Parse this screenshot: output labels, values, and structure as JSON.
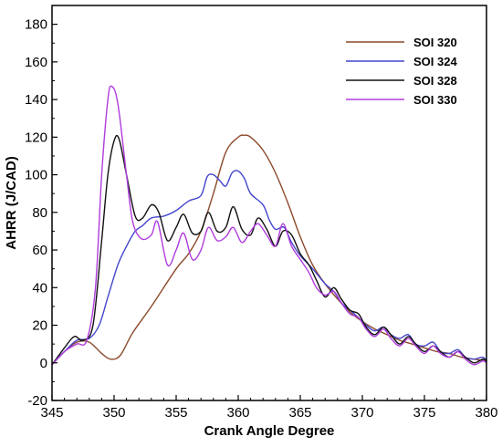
{
  "chart_data": {
    "type": "line",
    "title": "",
    "xlabel": "Crank Angle Degree",
    "ylabel": "AHRR (J/CAD)",
    "xlim": [
      345,
      380
    ],
    "ylim": [
      -20,
      190
    ],
    "xticks": [
      345,
      350,
      355,
      360,
      365,
      370,
      375,
      380
    ],
    "yticks": [
      -20,
      0,
      20,
      40,
      60,
      80,
      100,
      120,
      140,
      160,
      180
    ],
    "grid": false,
    "legend_position": "top-right",
    "series": [
      {
        "name": "SOI 320",
        "color": "#8b4a2b",
        "points": [
          [
            345,
            -1
          ],
          [
            346,
            6
          ],
          [
            347,
            11
          ],
          [
            348,
            11
          ],
          [
            349,
            5
          ],
          [
            349.7,
            2
          ],
          [
            350.5,
            4
          ],
          [
            351.5,
            16
          ],
          [
            353,
            30
          ],
          [
            355,
            50
          ],
          [
            356,
            58
          ],
          [
            357,
            70
          ],
          [
            358,
            90
          ],
          [
            359,
            112
          ],
          [
            360,
            120
          ],
          [
            360.5,
            121
          ],
          [
            361,
            120
          ],
          [
            362,
            113
          ],
          [
            363,
            101
          ],
          [
            364,
            85
          ],
          [
            365,
            67
          ],
          [
            366,
            52
          ],
          [
            367,
            42
          ],
          [
            368,
            34
          ],
          [
            369,
            27
          ],
          [
            370,
            22
          ],
          [
            371,
            18
          ],
          [
            372,
            15
          ],
          [
            373,
            12
          ],
          [
            374,
            10
          ],
          [
            375,
            8
          ],
          [
            376,
            6
          ],
          [
            377,
            5
          ],
          [
            378,
            3
          ],
          [
            379,
            2
          ],
          [
            380,
            1
          ]
        ]
      },
      {
        "name": "SOI 324",
        "color": "#4444cc",
        "points": [
          [
            345,
            -1
          ],
          [
            346,
            6
          ],
          [
            347,
            12
          ],
          [
            348,
            13
          ],
          [
            348.8,
            20
          ],
          [
            349.5,
            35
          ],
          [
            350.3,
            52
          ],
          [
            351,
            62
          ],
          [
            351.7,
            70
          ],
          [
            352.3,
            73
          ],
          [
            353,
            77
          ],
          [
            354,
            78
          ],
          [
            355,
            81
          ],
          [
            356,
            86
          ],
          [
            357,
            89
          ],
          [
            357.5,
            99
          ],
          [
            358,
            100
          ],
          [
            358.5,
            97
          ],
          [
            359,
            94
          ],
          [
            359.5,
            101
          ],
          [
            360,
            102
          ],
          [
            360.5,
            98
          ],
          [
            361,
            90
          ],
          [
            362,
            84
          ],
          [
            362.5,
            76
          ],
          [
            363,
            71
          ],
          [
            363.7,
            72
          ],
          [
            364.3,
            64
          ],
          [
            365,
            57
          ],
          [
            366,
            50
          ],
          [
            367,
            42
          ],
          [
            367.7,
            38
          ],
          [
            368.3,
            32
          ],
          [
            369,
            28
          ],
          [
            369.7,
            24
          ],
          [
            370.3,
            20
          ],
          [
            371,
            17
          ],
          [
            371.7,
            19
          ],
          [
            372.3,
            15
          ],
          [
            373,
            13
          ],
          [
            373.7,
            15
          ],
          [
            374.3,
            10
          ],
          [
            375,
            9
          ],
          [
            375.7,
            11
          ],
          [
            376.3,
            6
          ],
          [
            377,
            5
          ],
          [
            377.7,
            7
          ],
          [
            378.3,
            3
          ],
          [
            379,
            2
          ],
          [
            379.7,
            3
          ],
          [
            380,
            1
          ]
        ]
      },
      {
        "name": "SOI 328",
        "color": "#111111",
        "points": [
          [
            345,
            -1
          ],
          [
            346,
            8
          ],
          [
            346.8,
            14
          ],
          [
            347.5,
            12
          ],
          [
            348.3,
            20
          ],
          [
            349,
            65
          ],
          [
            349.5,
            100
          ],
          [
            350,
            118
          ],
          [
            350.4,
            119
          ],
          [
            351,
            100
          ],
          [
            351.7,
            78
          ],
          [
            352.3,
            77
          ],
          [
            353,
            84
          ],
          [
            353.6,
            80
          ],
          [
            354.3,
            65
          ],
          [
            355,
            72
          ],
          [
            355.6,
            79
          ],
          [
            356.3,
            69
          ],
          [
            357,
            70
          ],
          [
            357.6,
            80
          ],
          [
            358.3,
            70
          ],
          [
            359,
            72
          ],
          [
            359.6,
            83
          ],
          [
            360.3,
            71
          ],
          [
            361,
            68
          ],
          [
            361.6,
            77
          ],
          [
            362.3,
            71
          ],
          [
            363,
            62
          ],
          [
            363.6,
            70
          ],
          [
            364.3,
            68
          ],
          [
            365,
            58
          ],
          [
            365.7,
            52
          ],
          [
            366.3,
            44
          ],
          [
            367,
            35
          ],
          [
            367.7,
            40
          ],
          [
            368.3,
            34
          ],
          [
            369,
            28
          ],
          [
            369.7,
            26
          ],
          [
            370.3,
            19
          ],
          [
            371,
            15
          ],
          [
            371.7,
            19
          ],
          [
            372.3,
            15
          ],
          [
            373,
            10
          ],
          [
            373.7,
            14
          ],
          [
            374.3,
            10
          ],
          [
            375,
            6
          ],
          [
            375.7,
            9
          ],
          [
            376.3,
            6
          ],
          [
            377,
            3
          ],
          [
            377.7,
            6
          ],
          [
            378.3,
            3
          ],
          [
            379,
            0
          ],
          [
            379.7,
            2
          ],
          [
            380,
            1
          ]
        ]
      },
      {
        "name": "SOI 330",
        "color": "#b03cdd",
        "points": [
          [
            345,
            -1
          ],
          [
            346,
            6
          ],
          [
            347,
            10
          ],
          [
            347.8,
            12
          ],
          [
            348.5,
            40
          ],
          [
            349,
            100
          ],
          [
            349.5,
            140
          ],
          [
            349.8,
            147
          ],
          [
            350.3,
            138
          ],
          [
            351,
            100
          ],
          [
            351.5,
            75
          ],
          [
            352.2,
            66
          ],
          [
            353,
            68
          ],
          [
            353.5,
            75
          ],
          [
            354.3,
            52
          ],
          [
            355,
            60
          ],
          [
            355.6,
            69
          ],
          [
            356.3,
            55
          ],
          [
            357,
            60
          ],
          [
            357.6,
            72
          ],
          [
            358.3,
            65
          ],
          [
            359,
            67
          ],
          [
            359.6,
            72
          ],
          [
            360.3,
            64
          ],
          [
            361,
            70
          ],
          [
            361.6,
            74
          ],
          [
            362.3,
            68
          ],
          [
            363,
            62
          ],
          [
            363.6,
            74
          ],
          [
            364.3,
            62
          ],
          [
            365,
            55
          ],
          [
            365.7,
            48
          ],
          [
            366.3,
            40
          ],
          [
            367,
            36
          ],
          [
            367.7,
            38
          ],
          [
            368.3,
            32
          ],
          [
            369,
            26
          ],
          [
            369.7,
            24
          ],
          [
            370.3,
            18
          ],
          [
            371,
            14
          ],
          [
            371.7,
            18
          ],
          [
            372.3,
            13
          ],
          [
            373,
            9
          ],
          [
            373.7,
            13
          ],
          [
            374.3,
            9
          ],
          [
            375,
            5
          ],
          [
            375.7,
            9
          ],
          [
            376.3,
            5
          ],
          [
            377,
            3
          ],
          [
            377.7,
            6
          ],
          [
            378.3,
            2
          ],
          [
            379,
            -1
          ],
          [
            379.7,
            1
          ],
          [
            380,
            0
          ]
        ]
      }
    ]
  }
}
